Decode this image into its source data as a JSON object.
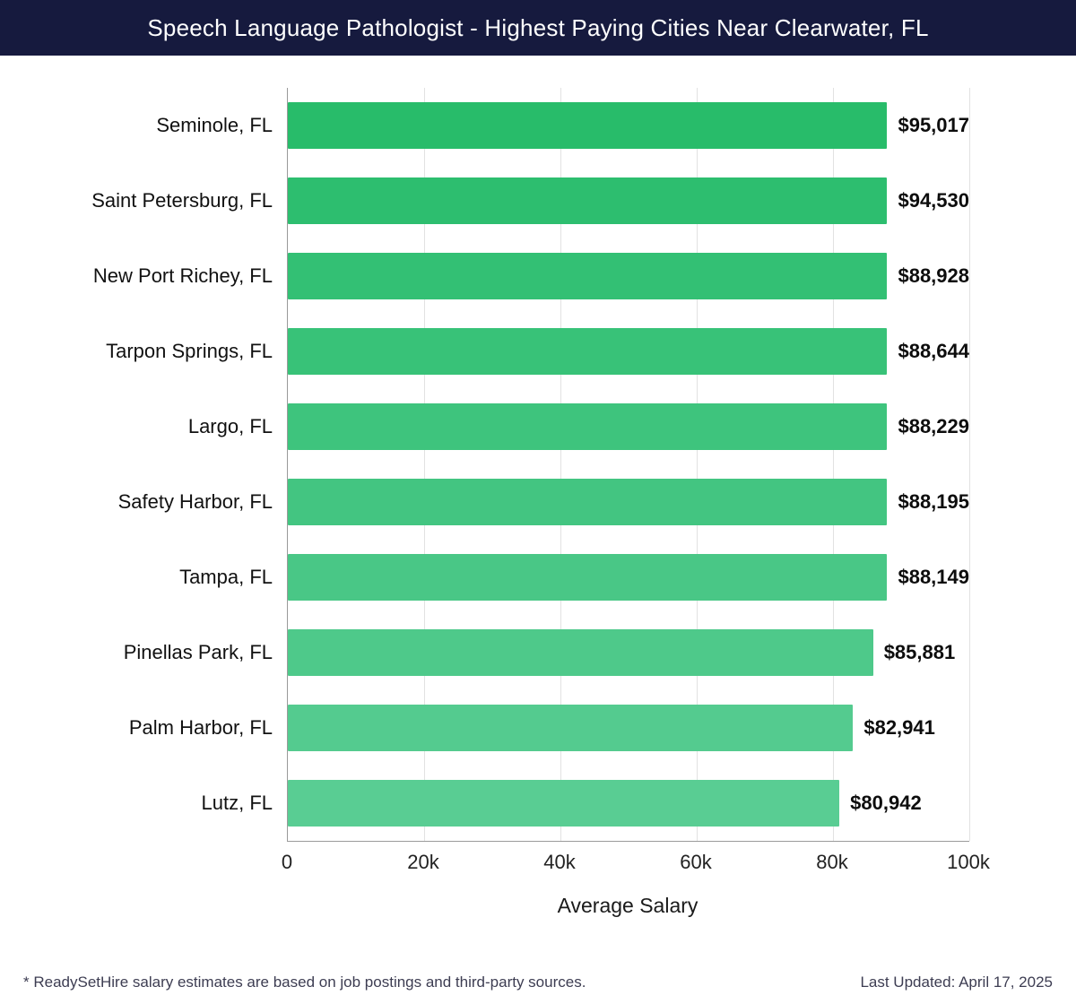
{
  "header": {
    "title": "Speech Language Pathologist - Highest Paying Cities Near Clearwater, FL",
    "bg_color": "#161a3e"
  },
  "chart_data": {
    "type": "bar",
    "orientation": "horizontal",
    "title": "Speech Language Pathologist - Highest Paying Cities Near Clearwater, FL",
    "categories": [
      "Seminole, FL",
      "Saint Petersburg, FL",
      "New Port Richey, FL",
      "Tarpon Springs, FL",
      "Largo, FL",
      "Safety Harbor, FL",
      "Tampa, FL",
      "Pinellas Park, FL",
      "Palm Harbor, FL",
      "Lutz, FL"
    ],
    "values": [
      95017,
      94530,
      88928,
      88644,
      88229,
      88195,
      88149,
      85881,
      82941,
      80942
    ],
    "value_labels": [
      "$95,017",
      "$94,530",
      "$88,928",
      "$88,644",
      "$88,229",
      "$88,195",
      "$88,149",
      "$85,881",
      "$82,941",
      "$80,942"
    ],
    "bar_colors": [
      "#28bc6a",
      "#2dbe6f",
      "#33c074",
      "#38c278",
      "#3ec47d",
      "#43c581",
      "#49c786",
      "#4ec98a",
      "#54cb8f",
      "#59cd93"
    ],
    "xlabel": "Average Salary",
    "ylabel": "",
    "xlim": [
      0,
      100000
    ],
    "x_ticks": [
      {
        "value": 0,
        "label": "0"
      },
      {
        "value": 20000,
        "label": "20k"
      },
      {
        "value": 40000,
        "label": "40k"
      },
      {
        "value": 60000,
        "label": "60k"
      },
      {
        "value": 80000,
        "label": "80k"
      },
      {
        "value": 100000,
        "label": "100k"
      }
    ],
    "grid": true,
    "legend": false
  },
  "footer": {
    "note": "* ReadySetHire salary estimates are based on job postings and third-party sources.",
    "last_updated": "Last Updated: April 17, 2025"
  }
}
